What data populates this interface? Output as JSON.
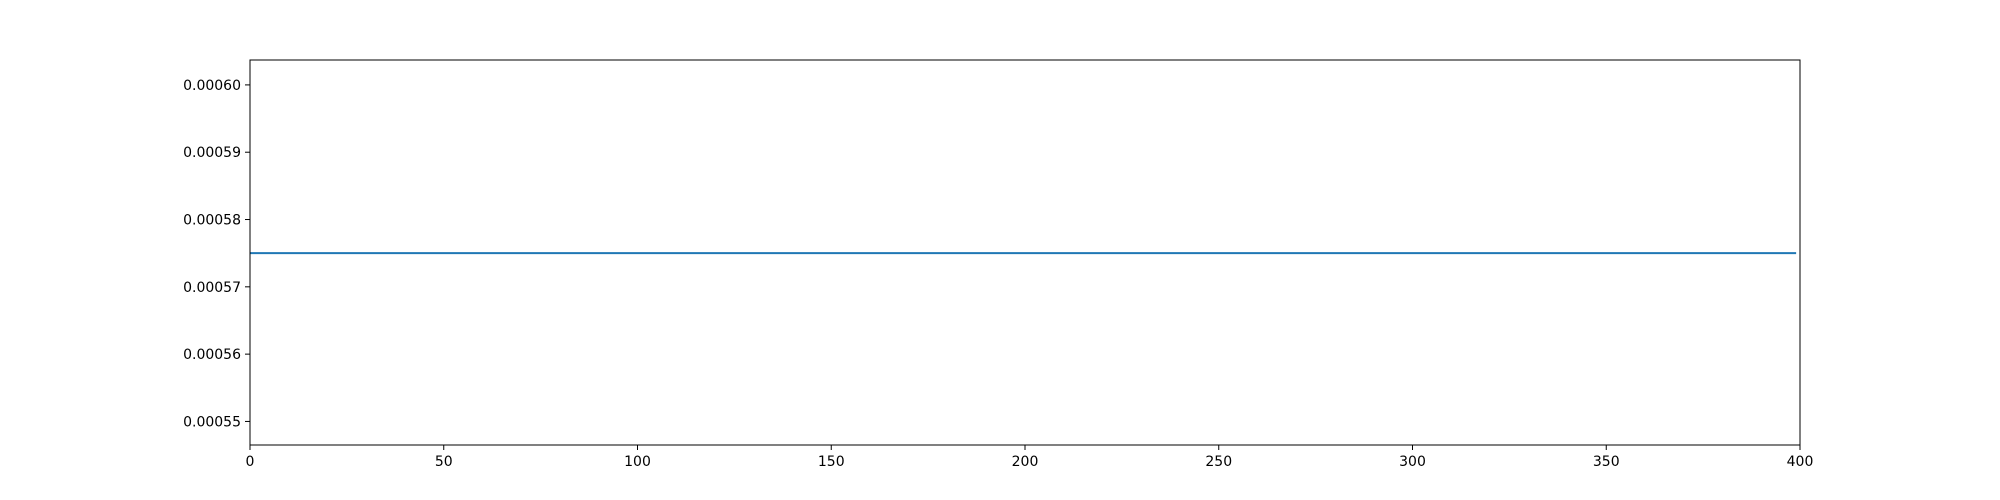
{
  "chart_data": {
    "type": "line",
    "title": "",
    "xlabel": "",
    "ylabel": "",
    "xlim": [
      0,
      400
    ],
    "ylim": [
      0.0005465,
      0.0006037
    ],
    "x_ticks": [
      0,
      50,
      100,
      150,
      200,
      250,
      300,
      350,
      400
    ],
    "x_tick_labels": [
      "0",
      "50",
      "100",
      "150",
      "200",
      "250",
      "300",
      "350",
      "400"
    ],
    "y_ticks": [
      0.00055,
      0.00056,
      0.00057,
      0.00058,
      0.00059,
      0.0006
    ],
    "y_tick_labels": [
      "0.00055",
      "0.00056",
      "0.00057",
      "0.00058",
      "0.00059",
      "0.00060"
    ],
    "grid": false,
    "legend": "none",
    "series": [
      {
        "color": "#1f77b4",
        "x": [
          0,
          399
        ],
        "y": [
          0.000575,
          0.000575
        ]
      }
    ]
  }
}
